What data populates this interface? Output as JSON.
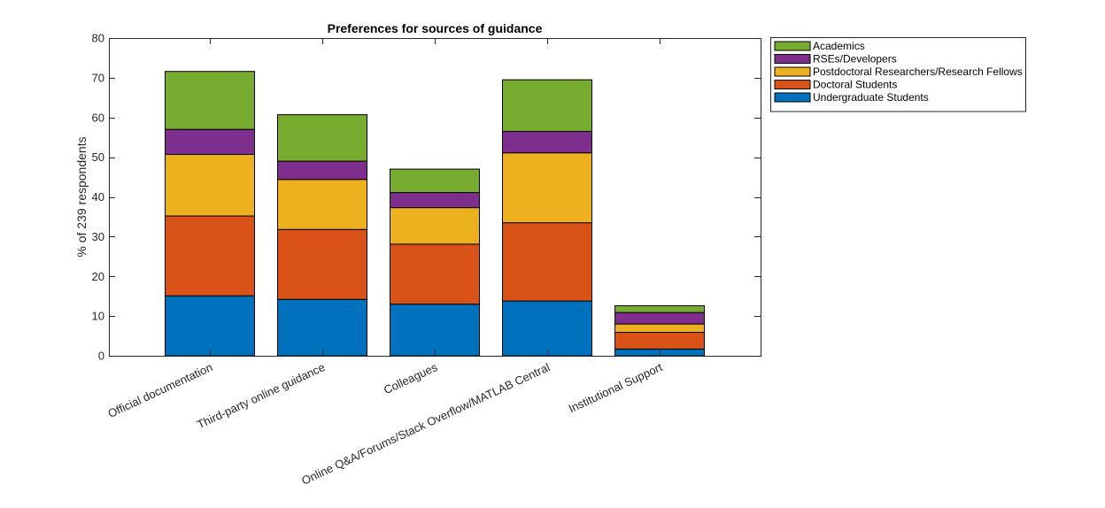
{
  "chart_data": {
    "type": "bar",
    "stacked": true,
    "title": "Preferences for sources of guidance",
    "xlabel": "",
    "ylabel": "% of 239 respondents",
    "ylim": [
      0,
      80
    ],
    "yticks": [
      0,
      10,
      20,
      30,
      40,
      50,
      60,
      70,
      80
    ],
    "grid": false,
    "legend_position": "outside top-right",
    "categories": [
      "Official documentation",
      "Third-party online guidance",
      "Colleagues",
      "Online Q&A/Forums/Stack Overflow/MATLAB Central",
      "Institutional Support"
    ],
    "series": [
      {
        "name": "Undergraduate Students",
        "color": "#0072BD",
        "values": [
          15.1,
          14.2,
          13.0,
          13.8,
          1.7
        ]
      },
      {
        "name": "Doctoral Students",
        "color": "#D95319",
        "values": [
          20.1,
          17.6,
          15.1,
          19.7,
          4.2
        ]
      },
      {
        "name": "Postdoctoral Researchers/Research Fellows",
        "color": "#EDB120",
        "values": [
          15.5,
          12.6,
          9.2,
          17.6,
          2.1
        ]
      },
      {
        "name": "RSEs/Developers",
        "color": "#7E2F8E",
        "values": [
          6.3,
          4.6,
          3.8,
          5.4,
          2.9
        ]
      },
      {
        "name": "Academics",
        "color": "#77AC30",
        "values": [
          14.6,
          11.7,
          5.9,
          13.0,
          1.7
        ]
      }
    ],
    "legend_order": [
      "Academics",
      "RSEs/Developers",
      "Postdoctoral Researchers/Research Fellows",
      "Doctoral Students",
      "Undergraduate Students"
    ]
  }
}
